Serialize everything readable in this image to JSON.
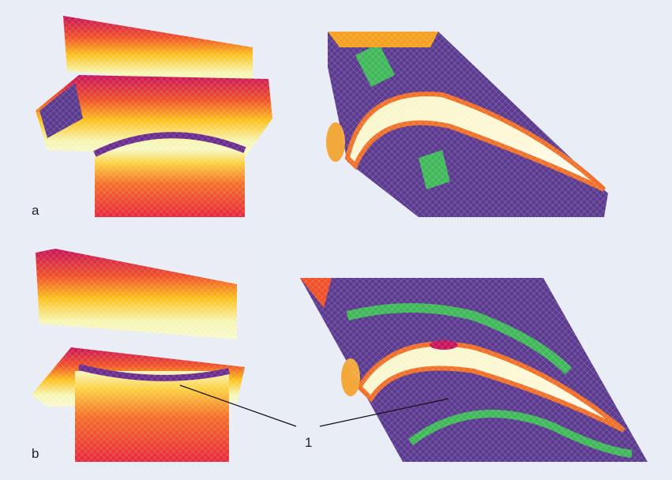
{
  "panels": [
    {
      "label": "a"
    },
    {
      "label": "b"
    }
  ],
  "callout": {
    "label": "1"
  }
}
